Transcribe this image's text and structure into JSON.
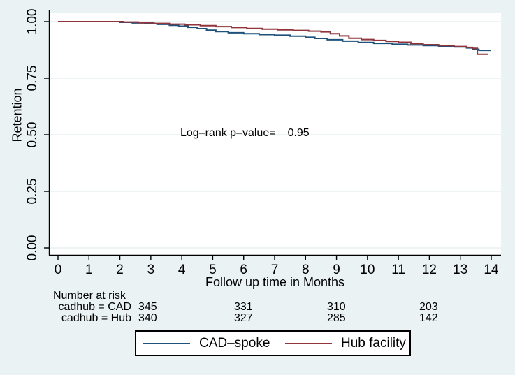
{
  "colors": {
    "background": "#eaf2f3",
    "plot_background": "#ffffff",
    "grid": "#dde9ec",
    "axis": "#000000",
    "cad": "#1f527a",
    "hub": "#90353b"
  },
  "chart_data": {
    "type": "line",
    "subtype": "kaplan-meier-step",
    "title": "",
    "xlabel": "Follow up time in Months",
    "ylabel": "Retention",
    "xlim": [
      0,
      14
    ],
    "ylim": [
      0.0,
      1.0
    ],
    "grid": "horizontal",
    "legend_position": "bottom-outside-boxed",
    "x_ticks": [
      {
        "value": 0,
        "label": "0"
      },
      {
        "value": 1,
        "label": "1"
      },
      {
        "value": 2,
        "label": "2"
      },
      {
        "value": 3,
        "label": "3"
      },
      {
        "value": 4,
        "label": "4"
      },
      {
        "value": 5,
        "label": "5"
      },
      {
        "value": 6,
        "label": "6"
      },
      {
        "value": 7,
        "label": "7"
      },
      {
        "value": 8,
        "label": "8"
      },
      {
        "value": 9,
        "label": "9"
      },
      {
        "value": 10,
        "label": "10"
      },
      {
        "value": 11,
        "label": "11"
      },
      {
        "value": 12,
        "label": "12"
      },
      {
        "value": 13,
        "label": "13"
      },
      {
        "value": 14,
        "label": "14"
      }
    ],
    "y_ticks": [
      {
        "value": 0.0,
        "label": "0.00"
      },
      {
        "value": 0.25,
        "label": "0.25"
      },
      {
        "value": 0.5,
        "label": "0.50"
      },
      {
        "value": 0.75,
        "label": "0.75"
      },
      {
        "value": 1.0,
        "label": "1.00"
      }
    ],
    "annotation": {
      "label": "Log–rank p–value=",
      "value": "0.95",
      "x": 3.95,
      "y": 0.5
    },
    "series": [
      {
        "name": "CAD–spoke",
        "color_key": "cad",
        "steps": [
          [
            0,
            1.0
          ],
          [
            2.0,
            0.997
          ],
          [
            2.4,
            0.994
          ],
          [
            2.8,
            0.991
          ],
          [
            3.2,
            0.988
          ],
          [
            3.6,
            0.984
          ],
          [
            3.9,
            0.98
          ],
          [
            4.2,
            0.975
          ],
          [
            4.5,
            0.969
          ],
          [
            4.8,
            0.962
          ],
          [
            5.1,
            0.956
          ],
          [
            5.5,
            0.951
          ],
          [
            6.0,
            0.947
          ],
          [
            6.5,
            0.943
          ],
          [
            7.0,
            0.94
          ],
          [
            7.5,
            0.936
          ],
          [
            8.0,
            0.931
          ],
          [
            8.3,
            0.926
          ],
          [
            8.7,
            0.92
          ],
          [
            9.2,
            0.914
          ],
          [
            9.7,
            0.908
          ],
          [
            10.2,
            0.904
          ],
          [
            10.8,
            0.9
          ],
          [
            11.3,
            0.897
          ],
          [
            11.8,
            0.894
          ],
          [
            12.3,
            0.891
          ],
          [
            12.8,
            0.888
          ],
          [
            13.2,
            0.884
          ],
          [
            13.4,
            0.878
          ],
          [
            13.6,
            0.873
          ],
          [
            14.0,
            0.873
          ]
        ]
      },
      {
        "name": "Hub facility",
        "color_key": "hub",
        "steps": [
          [
            0,
            1.0
          ],
          [
            2.1,
            0.998
          ],
          [
            2.6,
            0.995
          ],
          [
            3.1,
            0.992
          ],
          [
            3.6,
            0.989
          ],
          [
            4.1,
            0.986
          ],
          [
            4.6,
            0.982
          ],
          [
            5.1,
            0.978
          ],
          [
            5.6,
            0.974
          ],
          [
            6.1,
            0.97
          ],
          [
            6.6,
            0.967
          ],
          [
            7.1,
            0.964
          ],
          [
            7.6,
            0.961
          ],
          [
            8.1,
            0.958
          ],
          [
            8.5,
            0.955
          ],
          [
            8.8,
            0.947
          ],
          [
            9.1,
            0.937
          ],
          [
            9.4,
            0.927
          ],
          [
            9.8,
            0.921
          ],
          [
            10.2,
            0.917
          ],
          [
            10.6,
            0.913
          ],
          [
            11.0,
            0.909
          ],
          [
            11.4,
            0.903
          ],
          [
            11.8,
            0.898
          ],
          [
            12.3,
            0.894
          ],
          [
            12.8,
            0.89
          ],
          [
            13.2,
            0.886
          ],
          [
            13.4,
            0.882
          ],
          [
            13.55,
            0.856
          ],
          [
            13.9,
            0.856
          ]
        ]
      }
    ]
  },
  "risk_table": {
    "title": "Number at risk",
    "rows": [
      {
        "label": "cadhub = CAD",
        "values": [
          "345",
          "331",
          "310",
          "203"
        ]
      },
      {
        "label": "cadhub = Hub",
        "values": [
          "340",
          "327",
          "285",
          "142"
        ]
      }
    ]
  },
  "legend": {
    "entries": [
      {
        "label": "CAD–spoke",
        "color_key": "cad"
      },
      {
        "label": "Hub facility",
        "color_key": "hub"
      }
    ]
  }
}
